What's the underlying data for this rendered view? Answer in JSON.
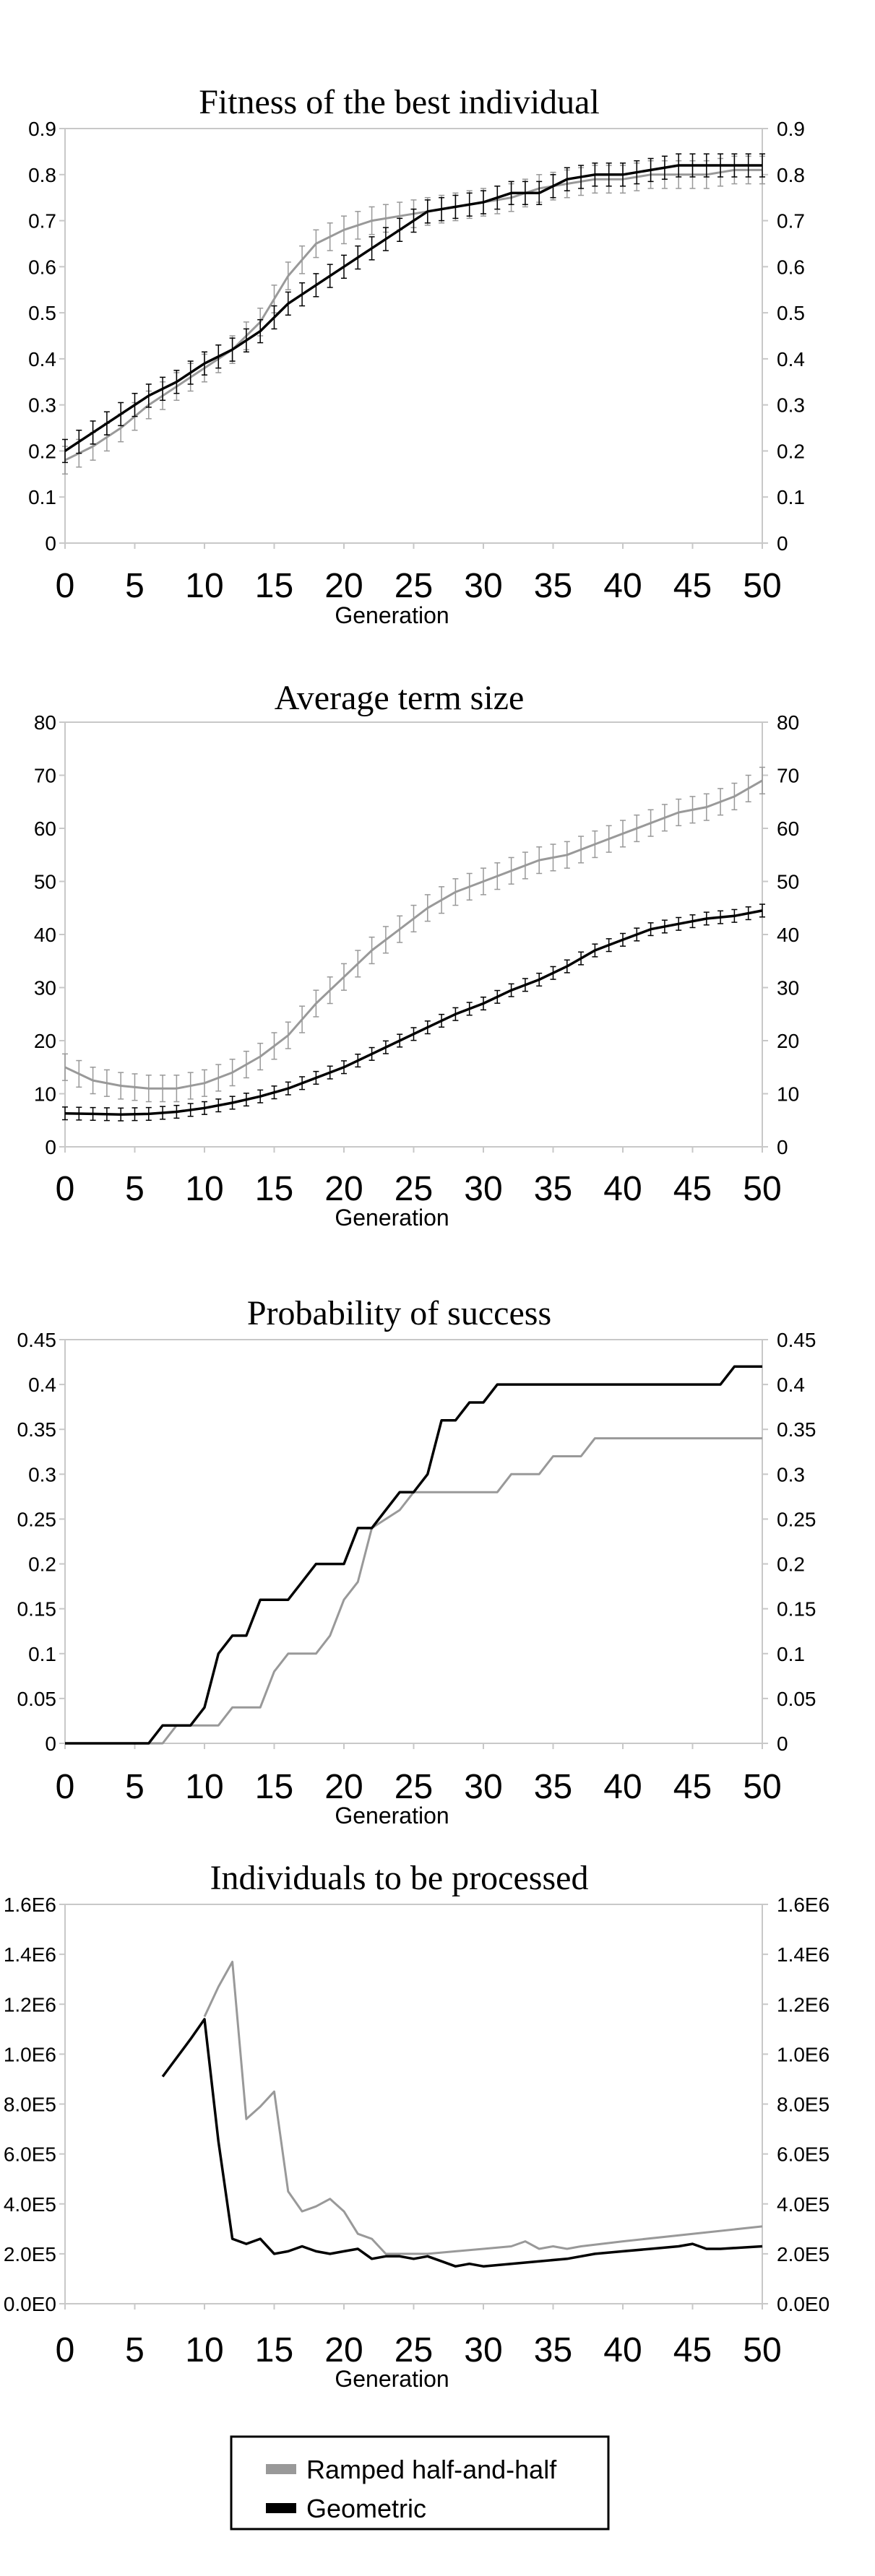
{
  "chart_data": [
    {
      "type": "line",
      "title": "Fitness of the best individual",
      "xlabel": "Generation",
      "ylabel": "",
      "xlim": [
        0,
        50
      ],
      "ylim": [
        0,
        0.9
      ],
      "xticks": [
        "0",
        "5",
        "10",
        "15",
        "20",
        "25",
        "30",
        "35",
        "40",
        "45",
        "50"
      ],
      "yticks": [
        "0",
        "0.1",
        "0.2",
        "0.3",
        "0.4",
        "0.5",
        "0.6",
        "0.7",
        "0.8",
        "0.9"
      ],
      "error_bars": true,
      "series": [
        {
          "name": "Ramped half-and-half",
          "color": "#999999",
          "x": [
            0,
            2,
            4,
            6,
            8,
            10,
            12,
            14,
            16,
            18,
            20,
            22,
            24,
            26,
            28,
            30,
            32,
            34,
            36,
            38,
            40,
            42,
            44,
            46,
            48,
            50
          ],
          "y": [
            0.18,
            0.21,
            0.25,
            0.3,
            0.34,
            0.38,
            0.42,
            0.48,
            0.58,
            0.65,
            0.68,
            0.7,
            0.71,
            0.72,
            0.73,
            0.74,
            0.75,
            0.77,
            0.78,
            0.79,
            0.79,
            0.8,
            0.8,
            0.8,
            0.81,
            0.81
          ],
          "err": 0.03
        },
        {
          "name": "Geometric",
          "color": "#000000",
          "x": [
            0,
            2,
            4,
            6,
            8,
            10,
            12,
            14,
            16,
            18,
            20,
            22,
            24,
            26,
            28,
            30,
            32,
            34,
            36,
            38,
            40,
            42,
            44,
            46,
            48,
            50
          ],
          "y": [
            0.2,
            0.24,
            0.28,
            0.32,
            0.35,
            0.39,
            0.42,
            0.46,
            0.52,
            0.56,
            0.6,
            0.64,
            0.68,
            0.72,
            0.73,
            0.74,
            0.76,
            0.76,
            0.79,
            0.8,
            0.8,
            0.81,
            0.82,
            0.82,
            0.82,
            0.82
          ],
          "err": 0.025
        }
      ]
    },
    {
      "type": "line",
      "title": "Average term size",
      "xlabel": "Generation",
      "ylabel": "",
      "xlim": [
        0,
        50
      ],
      "ylim": [
        0,
        80
      ],
      "xticks": [
        "0",
        "5",
        "10",
        "15",
        "20",
        "25",
        "30",
        "35",
        "40",
        "45",
        "50"
      ],
      "yticks": [
        "0",
        "10",
        "20",
        "30",
        "40",
        "50",
        "60",
        "70",
        "80"
      ],
      "error_bars": true,
      "series": [
        {
          "name": "Ramped half-and-half",
          "color": "#999999",
          "x": [
            0,
            2,
            4,
            6,
            8,
            10,
            12,
            14,
            16,
            18,
            20,
            22,
            24,
            26,
            28,
            30,
            32,
            34,
            36,
            38,
            40,
            42,
            44,
            46,
            48,
            50
          ],
          "y": [
            15,
            12.5,
            11.5,
            11,
            11,
            12,
            14,
            17,
            21,
            27,
            32,
            37,
            41,
            45,
            48,
            50,
            52,
            54,
            55,
            57,
            59,
            61,
            63,
            64,
            66,
            69
          ],
          "err": 2.5
        },
        {
          "name": "Geometric",
          "color": "#000000",
          "x": [
            0,
            2,
            4,
            6,
            8,
            10,
            12,
            14,
            16,
            18,
            20,
            22,
            24,
            26,
            28,
            30,
            32,
            34,
            36,
            38,
            40,
            42,
            44,
            46,
            48,
            50
          ],
          "y": [
            6.3,
            6.2,
            6.1,
            6.2,
            6.6,
            7.3,
            8.3,
            9.5,
            11,
            13,
            15,
            17.5,
            20,
            22.5,
            25,
            27,
            29.5,
            31.5,
            34,
            37,
            39,
            41,
            42,
            43,
            43.5,
            44.5
          ],
          "err": 1.2
        }
      ]
    },
    {
      "type": "line",
      "title": "Probability of success",
      "xlabel": "Generation",
      "ylabel": "",
      "xlim": [
        0,
        50
      ],
      "ylim": [
        0,
        0.45
      ],
      "xticks": [
        "0",
        "5",
        "10",
        "15",
        "20",
        "25",
        "30",
        "35",
        "40",
        "45",
        "50"
      ],
      "yticks": [
        "0",
        "0.05",
        "0.1",
        "0.15",
        "0.2",
        "0.25",
        "0.3",
        "0.35",
        "0.4",
        "0.45"
      ],
      "error_bars": false,
      "series": [
        {
          "name": "Ramped half-and-half",
          "color": "#999999",
          "x": [
            0,
            7,
            8,
            11,
            12,
            14,
            15,
            16,
            18,
            19,
            20,
            21,
            22,
            24,
            25,
            26,
            31,
            32,
            34,
            35,
            37,
            38,
            50
          ],
          "y": [
            0,
            0,
            0.02,
            0.02,
            0.04,
            0.04,
            0.08,
            0.1,
            0.1,
            0.12,
            0.16,
            0.18,
            0.24,
            0.26,
            0.28,
            0.28,
            0.28,
            0.3,
            0.3,
            0.32,
            0.32,
            0.34,
            0.34
          ]
        },
        {
          "name": "Geometric",
          "color": "#000000",
          "x": [
            0,
            6,
            7,
            9,
            10,
            11,
            12,
            13,
            14,
            15,
            16,
            17,
            18,
            19,
            20,
            21,
            22,
            23,
            24,
            25,
            26,
            27,
            28,
            29,
            30,
            31,
            47,
            48,
            50
          ],
          "y": [
            0,
            0,
            0.02,
            0.02,
            0.04,
            0.1,
            0.12,
            0.12,
            0.16,
            0.16,
            0.16,
            0.18,
            0.2,
            0.2,
            0.2,
            0.24,
            0.24,
            0.26,
            0.28,
            0.28,
            0.3,
            0.36,
            0.36,
            0.38,
            0.38,
            0.4,
            0.4,
            0.42,
            0.42
          ]
        }
      ]
    },
    {
      "type": "line",
      "title": "Individuals to be processed",
      "xlabel": "Generation",
      "ylabel": "",
      "xlim": [
        0,
        50
      ],
      "ylim": [
        0,
        1600000
      ],
      "xticks": [
        "0",
        "5",
        "10",
        "15",
        "20",
        "25",
        "30",
        "35",
        "40",
        "45",
        "50"
      ],
      "yticks": [
        "0.0E0",
        "2.0E5",
        "4.0E5",
        "6.0E5",
        "8.0E5",
        "1.0E6",
        "1.2E6",
        "1.4E6",
        "1.6E6"
      ],
      "error_bars": false,
      "series": [
        {
          "name": "Ramped half-and-half",
          "color": "#999999",
          "x": [
            10,
            11,
            12,
            13,
            14,
            15,
            16,
            17,
            18,
            19,
            20,
            21,
            22,
            23,
            24,
            25,
            26,
            28,
            30,
            32,
            33,
            34,
            35,
            36,
            37,
            40,
            45,
            50
          ],
          "y": [
            1150000,
            1270000,
            1370000,
            740000,
            790000,
            850000,
            450000,
            370000,
            390000,
            420000,
            370000,
            280000,
            260000,
            200000,
            200000,
            200000,
            200000,
            210000,
            220000,
            230000,
            250000,
            220000,
            230000,
            220000,
            230000,
            250000,
            280000,
            310000
          ]
        },
        {
          "name": "Geometric",
          "color": "#000000",
          "x": [
            7,
            9,
            10,
            11,
            12,
            13,
            14,
            15,
            16,
            17,
            18,
            19,
            20,
            21,
            22,
            23,
            24,
            25,
            26,
            27,
            28,
            29,
            30,
            32,
            34,
            36,
            38,
            40,
            42,
            44,
            45,
            46,
            47,
            50
          ],
          "y": [
            910000,
            1060000,
            1140000,
            650000,
            260000,
            240000,
            260000,
            200000,
            210000,
            230000,
            210000,
            200000,
            210000,
            220000,
            180000,
            190000,
            190000,
            180000,
            190000,
            170000,
            150000,
            160000,
            150000,
            160000,
            170000,
            180000,
            200000,
            210000,
            220000,
            230000,
            240000,
            220000,
            220000,
            230000
          ]
        }
      ]
    }
  ],
  "legend": {
    "items": [
      {
        "label": "Ramped half-and-half",
        "color": "#999999"
      },
      {
        "label": "Geometric",
        "color": "#000000"
      }
    ]
  }
}
